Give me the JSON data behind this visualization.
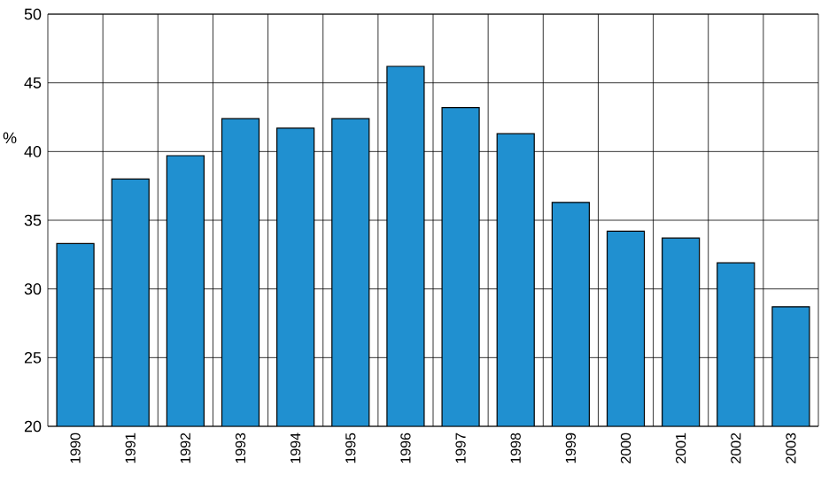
{
  "chart_data": {
    "type": "bar",
    "ylabel": "%",
    "categories": [
      "1990",
      "1991",
      "1992",
      "1993",
      "1994",
      "1995",
      "1996",
      "1997",
      "1998",
      "1999",
      "2000",
      "2001",
      "2002",
      "2003"
    ],
    "values": [
      33.3,
      38.0,
      39.7,
      42.4,
      41.7,
      42.4,
      46.2,
      43.2,
      41.3,
      36.3,
      34.2,
      33.7,
      31.9,
      28.7
    ],
    "color": "#2090d0",
    "ylim": [
      20,
      50
    ],
    "yticks": [
      20,
      25,
      30,
      35,
      40,
      45,
      50
    ],
    "grid": true
  }
}
